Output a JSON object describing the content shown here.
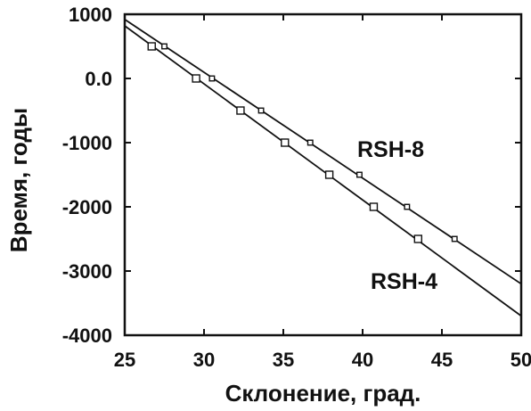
{
  "chart_data": {
    "type": "scatter",
    "xlabel": "Склонение, град.",
    "ylabel": "Время, годы",
    "xlim": [
      25,
      50
    ],
    "ylim": [
      -4000,
      1000
    ],
    "x_ticks": [
      "25",
      "30",
      "35",
      "40",
      "45",
      "50"
    ],
    "y_ticks": [
      "1000",
      "0.0",
      "-1000",
      "-2000",
      "-3000",
      "-4000"
    ],
    "grid": false,
    "series": [
      {
        "name": "RSH-8",
        "marker": "small-square",
        "points": [
          [
            27.5,
            500
          ],
          [
            30.5,
            0
          ],
          [
            33.6,
            -500
          ],
          [
            36.7,
            -1000
          ],
          [
            39.8,
            -1500
          ],
          [
            42.8,
            -2000
          ],
          [
            45.8,
            -2500
          ]
        ],
        "fit_line": [
          [
            25,
            920
          ],
          [
            50,
            -3200
          ]
        ]
      },
      {
        "name": "RSH-4",
        "marker": "square",
        "points": [
          [
            26.7,
            500
          ],
          [
            29.5,
            0
          ],
          [
            32.3,
            -500
          ],
          [
            35.1,
            -1000
          ],
          [
            37.9,
            -1500
          ],
          [
            40.7,
            -2000
          ],
          [
            43.5,
            -2500
          ]
        ],
        "fit_line": [
          [
            25,
            820
          ],
          [
            50,
            -3700
          ]
        ]
      }
    ],
    "colors": {
      "line": "#111111",
      "background": "#ffffff"
    }
  }
}
